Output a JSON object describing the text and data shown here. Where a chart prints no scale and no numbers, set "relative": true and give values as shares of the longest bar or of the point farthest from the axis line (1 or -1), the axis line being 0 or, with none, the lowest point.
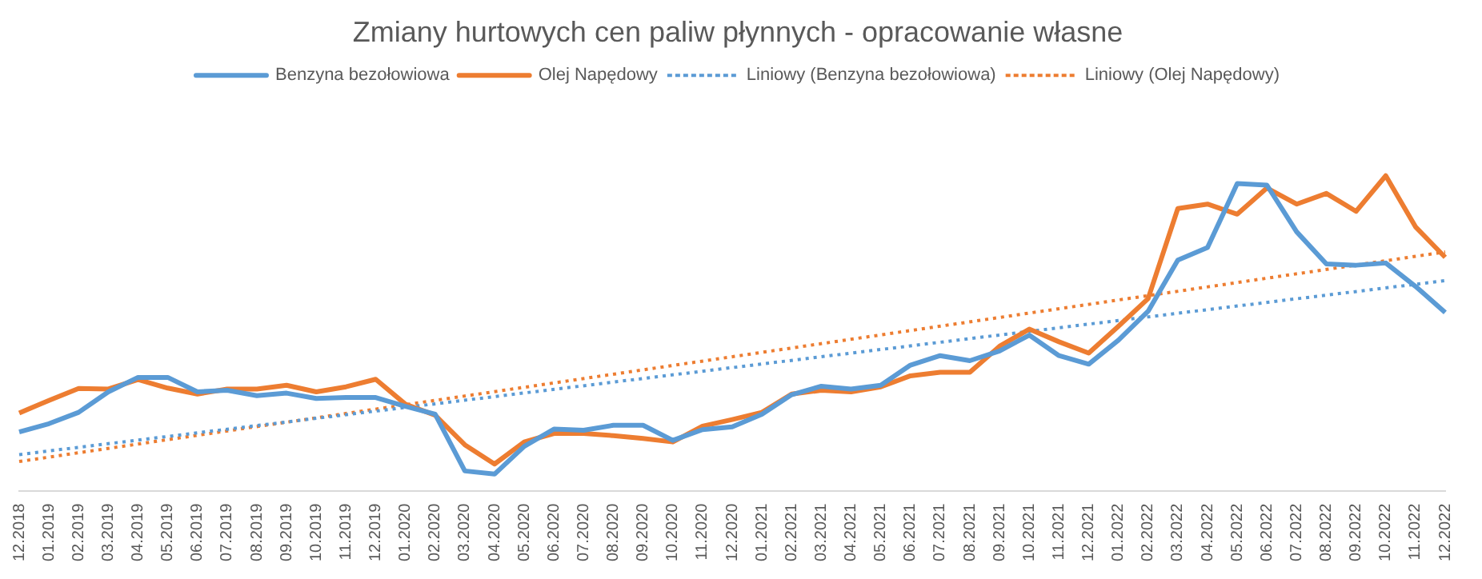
{
  "chart_data": {
    "type": "line",
    "title": "Zmiany hurtowych cen paliw płynnych - opracowanie własne",
    "relative": true,
    "grid": false,
    "legend": "top",
    "marker": "none",
    "categories": [
      "12.2018",
      "01.2019",
      "02.2019",
      "03.2019",
      "04.2019",
      "05.2019",
      "06.2019",
      "07.2019",
      "08.2019",
      "09.2019",
      "10.2019",
      "11.2019",
      "12.2019",
      "01.2020",
      "02.2020",
      "03.2020",
      "04.2020",
      "05.2020",
      "06.2020",
      "07.2020",
      "08.2020",
      "09.2020",
      "10.2020",
      "11.2020",
      "12.2020",
      "01.2021",
      "02.2021",
      "03.2021",
      "04.2021",
      "05.2021",
      "06.2021",
      "07.2021",
      "08.2021",
      "09.2021",
      "10.2021",
      "11.2021",
      "12.2021",
      "01.2022",
      "02.2022",
      "03.2022",
      "04.2022",
      "05.2022",
      "06.2022",
      "07.2022",
      "08.2022",
      "09.2022",
      "10.2022",
      "11.2022",
      "12.2022"
    ],
    "series": [
      {
        "name": "Benzyna bezołowiowa",
        "color": "#5b9bd5",
        "line_style": "solid",
        "values": [
          0.187,
          0.213,
          0.249,
          0.314,
          0.36,
          0.36,
          0.314,
          0.319,
          0.302,
          0.31,
          0.293,
          0.296,
          0.296,
          0.268,
          0.243,
          0.063,
          0.053,
          0.141,
          0.196,
          0.192,
          0.208,
          0.208,
          0.16,
          0.194,
          0.203,
          0.243,
          0.305,
          0.332,
          0.323,
          0.335,
          0.399,
          0.429,
          0.413,
          0.444,
          0.494,
          0.429,
          0.402,
          0.478,
          0.57,
          0.732,
          0.772,
          0.975,
          0.97,
          0.822,
          0.72,
          0.716,
          0.723,
          0.649,
          0.566
        ]
      },
      {
        "name": "Olej Napędowy",
        "color": "#ed7d31",
        "line_style": "solid",
        "values": [
          0.247,
          0.287,
          0.325,
          0.323,
          0.353,
          0.326,
          0.307,
          0.323,
          0.323,
          0.335,
          0.314,
          0.33,
          0.354,
          0.275,
          0.24,
          0.146,
          0.085,
          0.155,
          0.182,
          0.182,
          0.175,
          0.166,
          0.155,
          0.205,
          0.226,
          0.249,
          0.307,
          0.319,
          0.314,
          0.33,
          0.365,
          0.376,
          0.376,
          0.459,
          0.513,
          0.473,
          0.437,
          0.522,
          0.61,
          0.896,
          0.91,
          0.878,
          0.961,
          0.91,
          0.944,
          0.887,
          1.0,
          0.838,
          0.741
        ]
      },
      {
        "name": "Liniowy (Benzyna bezołowiowa)",
        "color": "#5b9bd5",
        "line_style": "dotted",
        "x": [
          "12.2018",
          "12.2022"
        ],
        "values": [
          0.115,
          0.667
        ]
      },
      {
        "name": "Liniowy (Olej Napędowy)",
        "color": "#ed7d31",
        "line_style": "dotted",
        "x": [
          "12.2018",
          "12.2022"
        ],
        "values": [
          0.093,
          0.758
        ]
      }
    ]
  }
}
